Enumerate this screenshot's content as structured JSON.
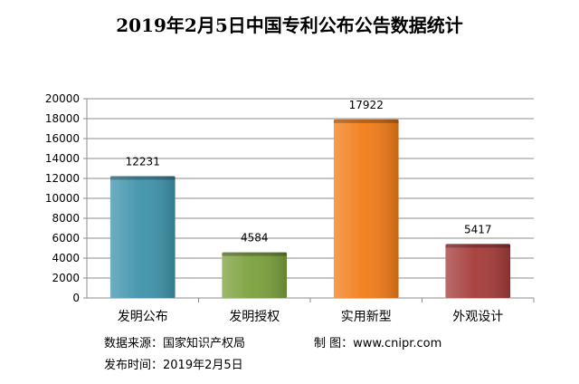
{
  "chart_data": {
    "type": "bar",
    "title": "2019年2月5日中国专利公布公告数据统计",
    "xlabel": "",
    "ylabel": "",
    "categories": [
      "发明公布",
      "发明授权",
      "实用新型",
      "外观设计"
    ],
    "values": [
      12231,
      4584,
      17922,
      5417
    ],
    "colors": [
      "#3f93ab",
      "#7ba03c",
      "#f27c18",
      "#a43b39"
    ],
    "ylim": [
      0,
      20000
    ],
    "yticks": [
      0,
      2000,
      4000,
      6000,
      8000,
      10000,
      12000,
      14000,
      16000,
      18000,
      20000
    ],
    "grid": true,
    "legend": "none"
  },
  "footer": {
    "source": "数据来源：国家知识产权局",
    "maker": "制  图：www.cnipr.com",
    "date": "发布时间：2019年2月5日"
  }
}
